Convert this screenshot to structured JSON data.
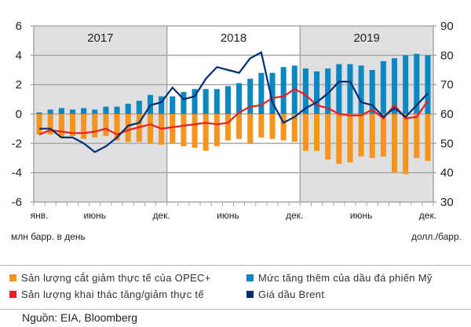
{
  "chart_data": {
    "type": "bar",
    "title": "",
    "years": [
      "2017",
      "2018",
      "2019"
    ],
    "x_tick_labels": [
      "янв.",
      "июнь",
      "дек.",
      "июнь",
      "дек.",
      "июнь",
      "дек."
    ],
    "months_count": 36,
    "left_axis": {
      "label": "млн барр. в день",
      "ylim": [
        -6,
        6
      ],
      "ticks": [
        "6",
        "4",
        "2",
        "0",
        "-2",
        "-4",
        "-6"
      ]
    },
    "right_axis": {
      "label": "долл./барр.",
      "ylim": [
        30,
        90
      ],
      "ticks": [
        "90",
        "80",
        "70",
        "60",
        "50",
        "40",
        "30"
      ]
    },
    "grid": true,
    "series": [
      {
        "name": "Sản lượng cắt giảm thực tế của OPEC+",
        "type": "bar",
        "axis": "left",
        "color": "#f7941d",
        "values": [
          -1.4,
          -1.4,
          -1.6,
          -1.5,
          -1.7,
          -1.6,
          -1.5,
          -1.8,
          -1.9,
          -1.9,
          -2.0,
          -2.1,
          -2.0,
          -2.2,
          -2.3,
          -2.5,
          -2.2,
          -1.8,
          -1.7,
          -2.0,
          -1.6,
          -1.7,
          -1.8,
          -1.9,
          -2.5,
          -2.5,
          -3.1,
          -3.4,
          -3.3,
          -2.9,
          -3.0,
          -2.9,
          -4.0,
          -4.1,
          -3.0,
          -3.2
        ]
      },
      {
        "name": "Mức tăng thêm của dầu đá phiến Mỹ",
        "type": "bar",
        "axis": "left",
        "color": "#0b87c1",
        "values": [
          0.1,
          0.3,
          0.4,
          0.3,
          0.4,
          0.3,
          0.5,
          0.5,
          0.7,
          0.9,
          1.3,
          1.2,
          1.2,
          1.5,
          1.7,
          1.7,
          1.7,
          1.9,
          2.1,
          2.4,
          2.8,
          2.8,
          3.2,
          3.3,
          3.1,
          2.9,
          3.1,
          3.4,
          3.4,
          3.3,
          3.0,
          3.6,
          3.8,
          4.0,
          4.1,
          4.0
        ]
      },
      {
        "name": "Sản lượng khai thác tăng/giảm thực tế",
        "type": "line",
        "axis": "left",
        "color": "#ee1c25",
        "values": [
          -1.4,
          -1.1,
          -1.2,
          -1.3,
          -1.3,
          -1.2,
          -1.0,
          -1.4,
          -1.1,
          -0.9,
          -0.7,
          -1.0,
          -0.9,
          -0.8,
          -0.7,
          -0.6,
          -0.7,
          -0.6,
          0.1,
          0.5,
          0.6,
          1.1,
          1.2,
          1.7,
          1.3,
          0.6,
          0.4,
          0.0,
          -0.1,
          -0.1,
          0.3,
          -0.3,
          0.6,
          -0.3,
          -0.2,
          0.9
        ]
      },
      {
        "name": "Giá dầu Brent",
        "type": "line",
        "axis": "right",
        "color": "#002d72",
        "values": [
          55,
          55,
          52,
          52,
          50,
          47,
          49,
          52,
          56,
          57,
          63,
          64,
          69,
          65,
          66,
          72,
          76,
          75,
          74,
          79,
          81,
          64,
          57,
          59,
          62,
          64,
          67,
          71,
          71,
          64,
          63,
          59,
          62,
          59,
          63,
          67
        ]
      }
    ]
  },
  "legend": [
    {
      "label": "Sản lượng cắt giảm thực tế của OPEC+",
      "color": "#f7941d"
    },
    {
      "label": "Mức tăng thêm của dầu đá phiến Mỹ",
      "color": "#0b87c1"
    },
    {
      "label": "Sản lượng khai thác tăng/giảm thực tế",
      "color": "#ee1c25"
    },
    {
      "label": "Giá dầu Brent",
      "color": "#002d72"
    }
  ],
  "source": "Nguồn: EIA, Bloomberg"
}
